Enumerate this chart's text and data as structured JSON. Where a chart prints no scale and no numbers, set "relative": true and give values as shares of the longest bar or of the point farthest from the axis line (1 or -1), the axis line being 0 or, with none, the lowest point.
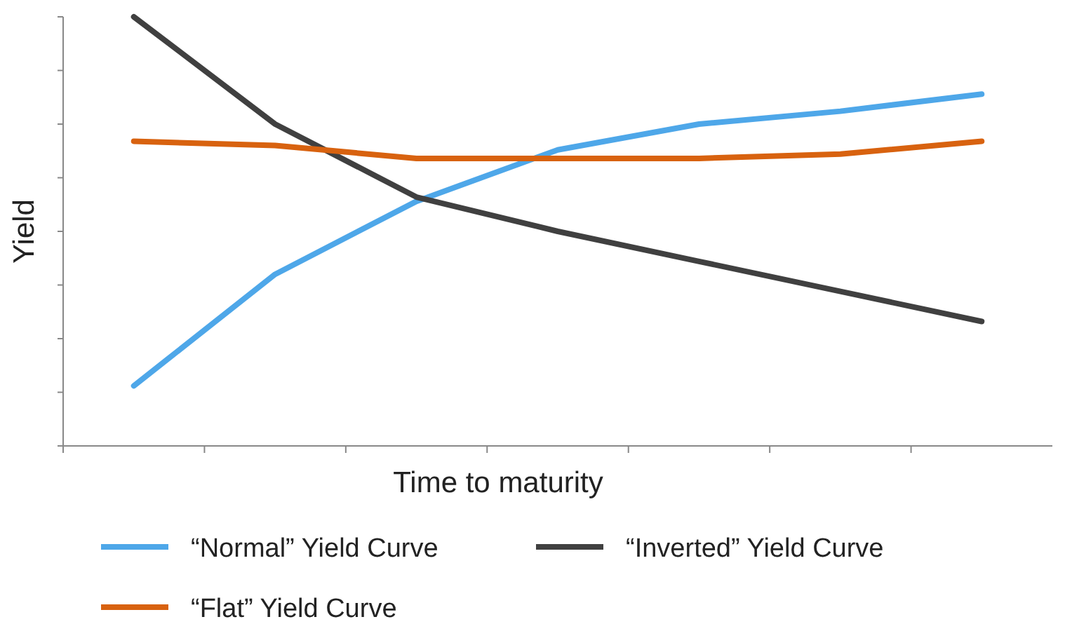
{
  "chart_data": {
    "type": "line",
    "relative": true,
    "xlabel": "Time to maturity",
    "ylabel": "Yield",
    "legend": "bottom",
    "categories": [
      null,
      null,
      null,
      null,
      null,
      null,
      null
    ],
    "series": [
      {
        "name": "“Normal” Yield Curve",
        "color": "#4ea7e9",
        "values": [
          0.14,
          0.4,
          0.57,
          0.69,
          0.75,
          0.78,
          0.82
        ]
      },
      {
        "name": "“Inverted” Yield Curve",
        "color": "#404040",
        "values": [
          1,
          0.75,
          0.58,
          0.5,
          0.43,
          0.36,
          0.29
        ]
      },
      {
        "name": "“Flat” Yield Curve",
        "color": "#d8620f",
        "values": [
          0.71,
          0.7,
          0.67,
          0.67,
          0.67,
          0.68,
          0.71
        ]
      }
    ]
  }
}
